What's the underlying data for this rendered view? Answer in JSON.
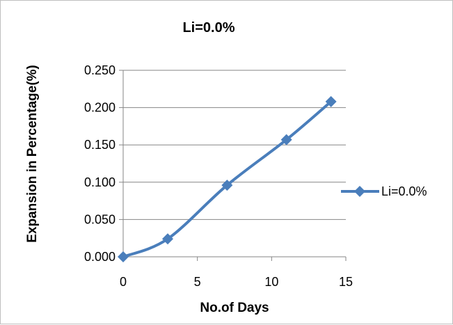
{
  "chart_data": {
    "type": "line",
    "title": "Li=0.0%",
    "xlabel": "No.of Days",
    "ylabel": "Expansion in Percentage(%)",
    "xlim": [
      0,
      15
    ],
    "ylim": [
      0,
      0.25
    ],
    "x_ticks": [
      "0",
      "5",
      "10",
      "15"
    ],
    "y_ticks": [
      "0.000",
      "0.050",
      "0.100",
      "0.150",
      "0.200",
      "0.250"
    ],
    "grid": "horizontal",
    "legend_position": "right",
    "smoothed": true,
    "marker": "diamond",
    "series": [
      {
        "name": "Li=0.0%",
        "color": "#4a7ebb",
        "x": [
          0,
          3,
          7,
          11,
          14
        ],
        "values": [
          0.0,
          0.024,
          0.096,
          0.157,
          0.208
        ]
      }
    ]
  }
}
